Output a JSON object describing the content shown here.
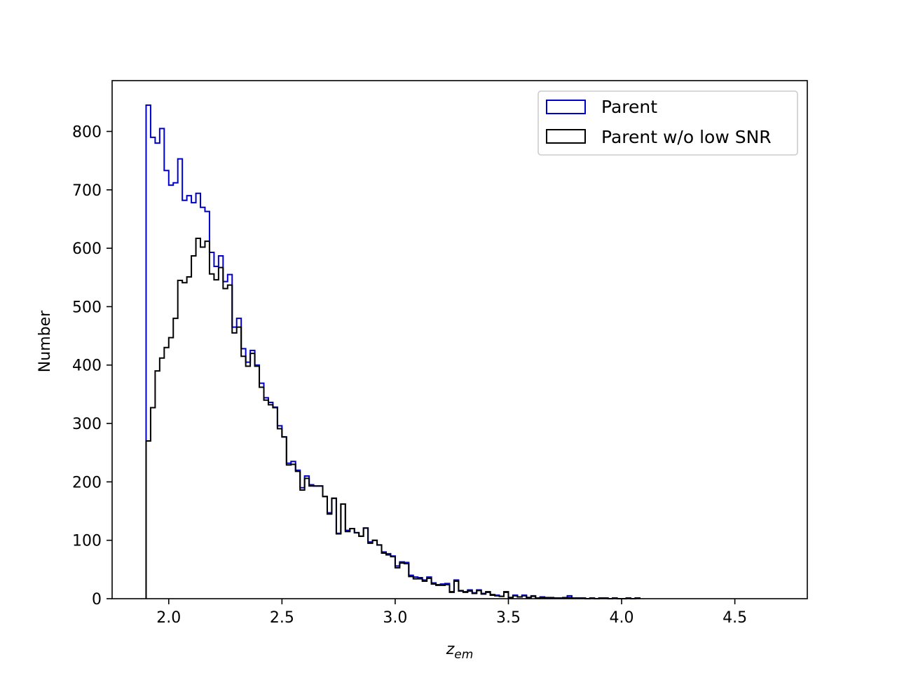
{
  "chart_data": {
    "type": "histogram",
    "xlabel": "z",
    "xlabel_subscript": "em",
    "ylabel": "Number",
    "xlim": [
      1.75,
      4.82
    ],
    "ylim": [
      0,
      887
    ],
    "xticks": [
      2.0,
      2.5,
      3.0,
      3.5,
      4.0,
      4.5
    ],
    "xtick_labels": [
      "2.0",
      "2.5",
      "3.0",
      "3.5",
      "4.0",
      "4.5"
    ],
    "yticks": [
      0,
      100,
      200,
      300,
      400,
      500,
      600,
      700,
      800
    ],
    "ytick_labels": [
      "0",
      "100",
      "200",
      "300",
      "400",
      "500",
      "600",
      "700",
      "800"
    ],
    "grid": false,
    "legend_position": "upper-right",
    "bin_start": 1.9,
    "bin_width": 0.02,
    "series": [
      {
        "name": "Parent",
        "color": "#0000cc",
        "style": "step",
        "values": [
          845,
          790,
          780,
          805,
          733,
          708,
          712,
          753,
          682,
          690,
          678,
          694,
          670,
          663,
          593,
          569,
          587,
          543,
          555,
          465,
          480,
          428,
          405,
          425,
          400,
          369,
          344,
          336,
          328,
          296,
          277,
          232,
          235,
          220,
          190,
          210,
          195,
          193,
          193,
          175,
          147,
          172,
          112,
          162,
          117,
          120,
          113,
          107,
          121,
          97,
          100,
          92,
          80,
          77,
          73,
          56,
          63,
          62,
          40,
          37,
          36,
          32,
          37,
          27,
          24,
          25,
          26,
          12,
          32,
          14,
          12,
          15,
          10,
          15,
          9,
          12,
          7,
          6,
          4,
          12,
          2,
          6,
          3,
          6,
          2,
          5,
          1,
          3,
          2,
          2,
          1,
          1,
          2,
          5,
          1,
          1,
          1,
          0,
          1,
          0,
          1,
          1,
          0,
          1,
          0,
          0,
          1,
          0,
          1
        ]
      },
      {
        "name": "Parent w/o low SNR",
        "color": "#000000",
        "style": "step",
        "values": [
          270,
          327,
          390,
          412,
          430,
          447,
          480,
          545,
          541,
          551,
          587,
          617,
          602,
          612,
          556,
          546,
          567,
          531,
          537,
          455,
          465,
          415,
          398,
          420,
          398,
          362,
          340,
          332,
          327,
          291,
          277,
          229,
          230,
          218,
          186,
          206,
          193,
          193,
          193,
          175,
          145,
          172,
          111,
          162,
          115,
          120,
          113,
          107,
          121,
          95,
          100,
          92,
          78,
          75,
          72,
          53,
          61,
          60,
          38,
          34,
          34,
          30,
          35,
          25,
          23,
          23,
          24,
          11,
          30,
          13,
          11,
          13,
          9,
          14,
          8,
          11,
          6,
          5,
          4,
          11,
          2,
          5,
          3,
          5,
          2,
          4,
          1,
          2,
          1,
          1,
          1,
          1,
          1,
          2,
          1,
          1,
          1,
          0,
          1,
          0,
          1,
          1,
          0,
          1,
          0,
          0,
          1,
          0,
          1
        ]
      }
    ]
  }
}
